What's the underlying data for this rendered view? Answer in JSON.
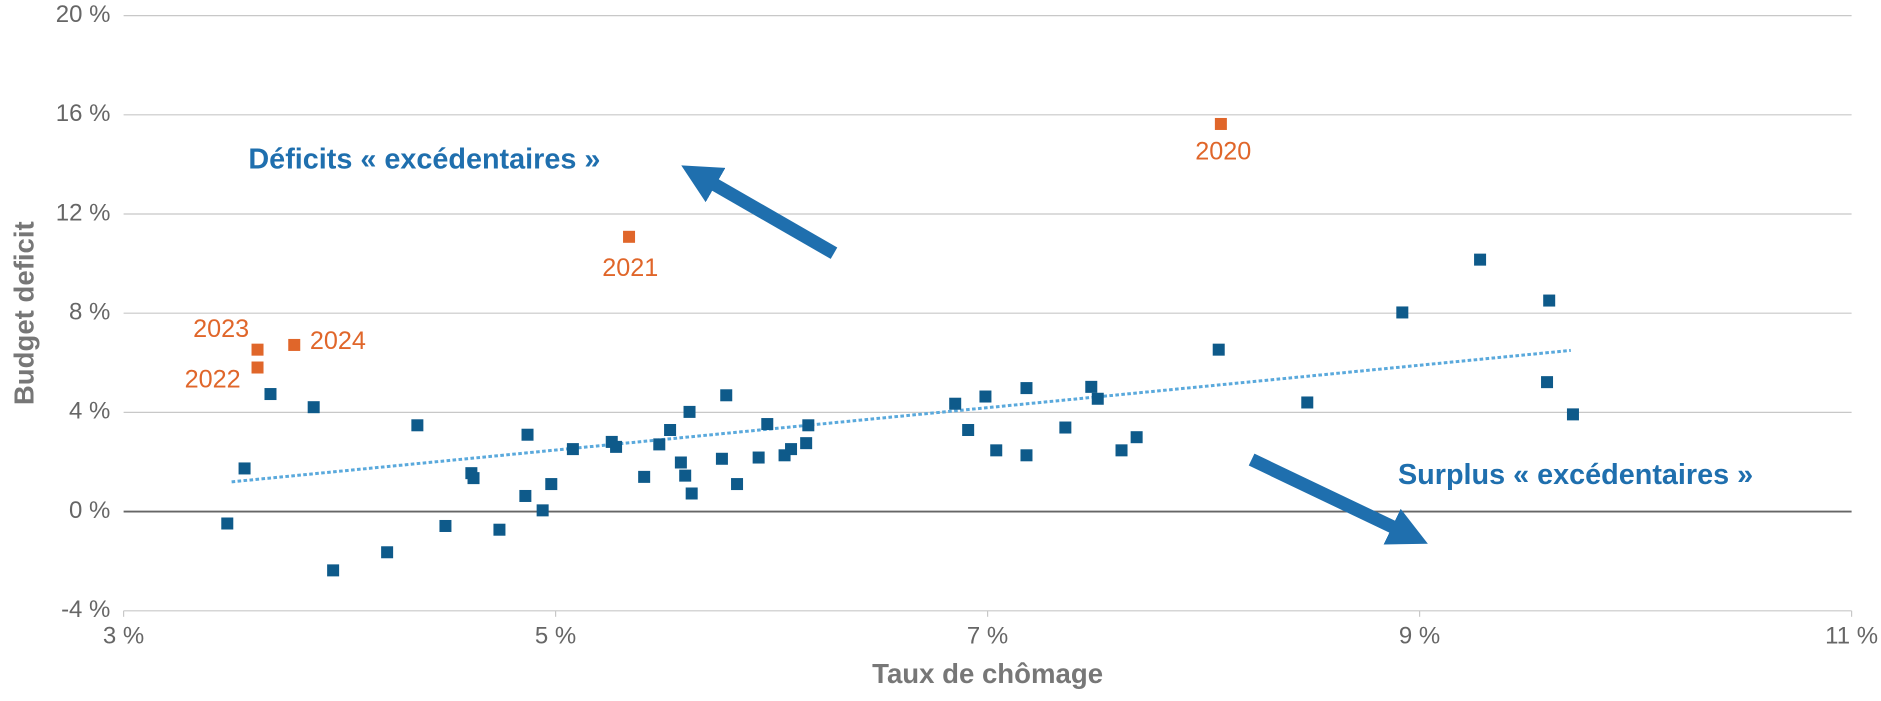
{
  "chart_data": {
    "type": "scatter",
    "x_label": "Taux de chômage",
    "y_label": "Budget deficit",
    "xlim": [
      3,
      11
    ],
    "ylim": [
      -4,
      20
    ],
    "xticks": [
      {
        "value": 3,
        "label": "3 %"
      },
      {
        "value": 5,
        "label": "5 %"
      },
      {
        "value": 7,
        "label": "7 %"
      },
      {
        "value": 9,
        "label": "9 %"
      },
      {
        "value": 11,
        "label": "11 %"
      }
    ],
    "yticks": [
      {
        "value": -4,
        "label": "-4 %"
      },
      {
        "value": 0,
        "label": "0 %"
      },
      {
        "value": 4,
        "label": "4 %"
      },
      {
        "value": 8,
        "label": "8 %"
      },
      {
        "value": 12,
        "label": "12 %"
      },
      {
        "value": 16,
        "label": "16 %"
      },
      {
        "value": 20,
        "label": "20 %"
      }
    ],
    "grid": true,
    "series": [
      {
        "color": "#0e5a8a",
        "x": [
          3.48,
          3.56,
          3.68,
          3.88,
          3.97,
          4.22,
          4.36,
          4.49,
          4.61,
          4.62,
          4.74,
          4.86,
          4.87,
          4.94,
          4.98,
          5.08,
          5.26,
          5.28,
          5.41,
          5.48,
          5.53,
          5.58,
          5.6,
          5.62,
          5.63,
          5.77,
          5.79,
          5.84,
          5.94,
          5.98,
          6.06,
          6.09,
          6.16,
          6.17,
          6.85,
          6.91,
          6.99,
          7.04,
          7.18,
          7.18,
          7.36,
          7.48,
          7.51,
          7.62,
          7.69,
          8.07,
          8.48,
          8.92,
          9.28,
          9.6,
          9.59,
          9.71
        ],
        "values": [
          -0.48,
          1.74,
          4.74,
          4.21,
          -2.37,
          -1.64,
          3.48,
          -0.58,
          1.55,
          1.35,
          -0.73,
          0.63,
          3.1,
          0.05,
          1.11,
          2.52,
          2.81,
          2.61,
          1.4,
          2.71,
          3.29,
          1.98,
          1.45,
          4.02,
          0.73,
          2.13,
          4.69,
          1.11,
          2.18,
          3.53,
          2.27,
          2.52,
          2.76,
          3.48,
          4.35,
          3.29,
          4.64,
          2.47,
          2.27,
          4.98,
          3.39,
          5.03,
          4.55,
          2.47,
          3.0,
          6.53,
          4.4,
          8.03,
          10.16,
          8.51,
          5.22,
          3.92
        ]
      },
      {
        "color": "#e0662a",
        "x": [
          8.08,
          5.34,
          3.62,
          3.62,
          3.79
        ],
        "values": [
          15.63,
          11.08,
          5.81,
          6.53,
          6.72
        ],
        "labels": [
          "2020",
          "2021",
          "2022",
          "2023",
          "2024"
        ]
      }
    ],
    "trendline": {
      "color": "#5aa9dc",
      "x": [
        3.5,
        9.7
      ],
      "values": [
        1.2,
        6.5
      ]
    },
    "annotations": [
      "Déficits « excédentaires »",
      "Surplus « excédentaires »"
    ]
  }
}
